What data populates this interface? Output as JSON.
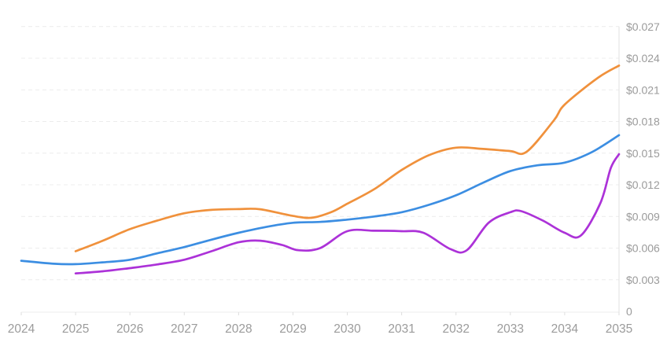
{
  "chart_data": {
    "type": "line",
    "title": "",
    "subtitle": "",
    "legend": "none",
    "background_color": "#ffffff",
    "text_color": "#9b9b9b",
    "grid_color": "#ececec",
    "axis_line_color": "#e2e2e2",
    "grid": {
      "horizontal": "dashed",
      "vertical": "none"
    },
    "x_axis": {
      "label": "",
      "range": [
        2024,
        2035
      ],
      "ticks": [
        "2024",
        "2025",
        "2026",
        "2027",
        "2028",
        "2029",
        "2030",
        "2031",
        "2032",
        "2033",
        "2034",
        "2035"
      ]
    },
    "y_axis": {
      "label": "",
      "side": "right",
      "prefix": "$",
      "range": [
        0,
        0.027
      ],
      "ticks": [
        {
          "value": 0,
          "label": "0"
        },
        {
          "value": 0.003,
          "label": "$0.003"
        },
        {
          "value": 0.006,
          "label": "$0.006"
        },
        {
          "value": 0.009,
          "label": "$0.009"
        },
        {
          "value": 0.012,
          "label": "$0.012"
        },
        {
          "value": 0.015,
          "label": "$0.015"
        },
        {
          "value": 0.018,
          "label": "$0.018"
        },
        {
          "value": 0.021,
          "label": "$0.021"
        },
        {
          "value": 0.024,
          "label": "$0.024"
        },
        {
          "value": 0.027,
          "label": "$0.027"
        }
      ]
    },
    "series": [
      {
        "name": "orange-forecast-line",
        "color": "#F0913C",
        "points": [
          [
            2025,
            0.0057
          ],
          [
            2025.5,
            0.0067
          ],
          [
            2026,
            0.0078
          ],
          [
            2026.5,
            0.0086
          ],
          [
            2027,
            0.0093
          ],
          [
            2027.5,
            0.00962
          ],
          [
            2028,
            0.0097
          ],
          [
            2028.4,
            0.00968
          ],
          [
            2029,
            0.00905
          ],
          [
            2029.35,
            0.00888
          ],
          [
            2029.7,
            0.0094
          ],
          [
            2030,
            0.0102
          ],
          [
            2030.5,
            0.0116
          ],
          [
            2031,
            0.0134
          ],
          [
            2031.5,
            0.0148
          ],
          [
            2032,
            0.01552
          ],
          [
            2032.5,
            0.0154
          ],
          [
            2033,
            0.0152
          ],
          [
            2033.3,
            0.01513
          ],
          [
            2033.8,
            0.0181
          ],
          [
            2034,
            0.0196
          ],
          [
            2034.6,
            0.0221
          ],
          [
            2035,
            0.0233
          ]
        ]
      },
      {
        "name": "blue-forecast-line",
        "color": "#3C8EE2",
        "points": [
          [
            2024,
            0.0048
          ],
          [
            2024.6,
            0.00452
          ],
          [
            2025,
            0.00448
          ],
          [
            2025.5,
            0.00465
          ],
          [
            2026,
            0.0049
          ],
          [
            2026.5,
            0.0055
          ],
          [
            2027,
            0.0061
          ],
          [
            2027.5,
            0.0068
          ],
          [
            2028,
            0.00745
          ],
          [
            2028.5,
            0.008
          ],
          [
            2029,
            0.0084
          ],
          [
            2029.5,
            0.00848
          ],
          [
            2030,
            0.0087
          ],
          [
            2030.5,
            0.009
          ],
          [
            2031,
            0.0094
          ],
          [
            2031.5,
            0.0101
          ],
          [
            2032,
            0.011
          ],
          [
            2032.5,
            0.0122
          ],
          [
            2033,
            0.0133
          ],
          [
            2033.5,
            0.01385
          ],
          [
            2034,
            0.0141
          ],
          [
            2034.5,
            0.0151
          ],
          [
            2035,
            0.0167
          ]
        ]
      },
      {
        "name": "purple-forecast-line",
        "color": "#AC32D8",
        "points": [
          [
            2025,
            0.0036
          ],
          [
            2025.5,
            0.0038
          ],
          [
            2026,
            0.0041
          ],
          [
            2026.5,
            0.00445
          ],
          [
            2027,
            0.0049
          ],
          [
            2027.5,
            0.0057
          ],
          [
            2028,
            0.00655
          ],
          [
            2028.4,
            0.0067
          ],
          [
            2028.8,
            0.0063
          ],
          [
            2029.1,
            0.0058
          ],
          [
            2029.5,
            0.006
          ],
          [
            2030,
            0.0076
          ],
          [
            2030.5,
            0.00765
          ],
          [
            2031,
            0.0076
          ],
          [
            2031.4,
            0.00745
          ],
          [
            2031.9,
            0.0059
          ],
          [
            2032.2,
            0.0058
          ],
          [
            2032.6,
            0.0084
          ],
          [
            2033,
            0.0094
          ],
          [
            2033.2,
            0.0095
          ],
          [
            2033.6,
            0.0086
          ],
          [
            2034,
            0.00745
          ],
          [
            2034.3,
            0.0072
          ],
          [
            2034.66,
            0.0103
          ],
          [
            2034.85,
            0.0136
          ],
          [
            2035,
            0.0149
          ]
        ]
      }
    ]
  }
}
